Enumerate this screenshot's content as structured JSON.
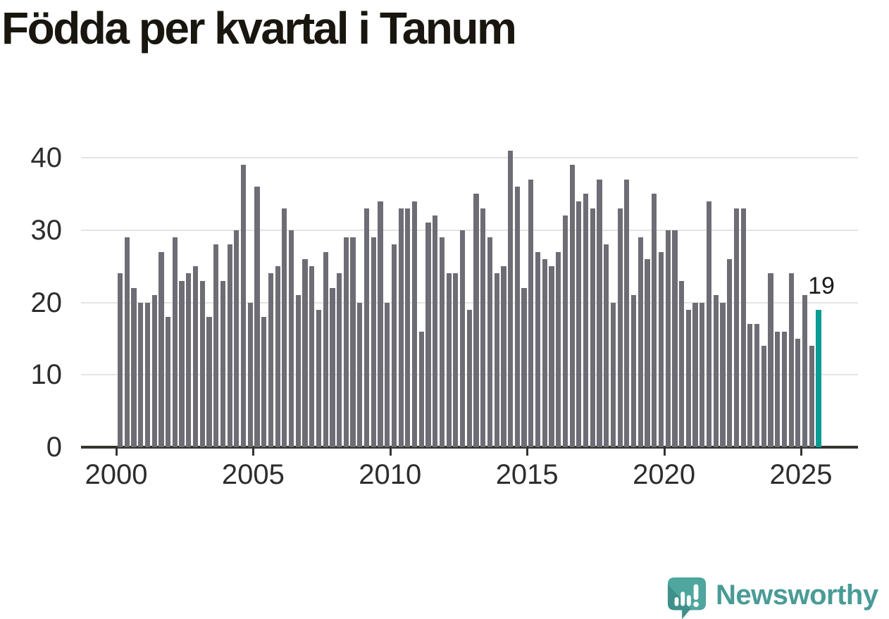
{
  "title": "Födda per kvartal i Tanum",
  "chart_data": {
    "type": "bar",
    "title": "Födda per kvartal i Tanum",
    "quarters": [
      "2000 Q1",
      "2000 Q2",
      "2000 Q3",
      "2000 Q4",
      "2001 Q1",
      "2001 Q2",
      "2001 Q3",
      "2001 Q4",
      "2002 Q1",
      "2002 Q2",
      "2002 Q3",
      "2002 Q4",
      "2003 Q1",
      "2003 Q2",
      "2003 Q3",
      "2003 Q4",
      "2004 Q1",
      "2004 Q2",
      "2004 Q3",
      "2004 Q4",
      "2005 Q1",
      "2005 Q2",
      "2005 Q3",
      "2005 Q4",
      "2006 Q1",
      "2006 Q2",
      "2006 Q3",
      "2006 Q4",
      "2007 Q1",
      "2007 Q2",
      "2007 Q3",
      "2007 Q4",
      "2008 Q1",
      "2008 Q2",
      "2008 Q3",
      "2008 Q4",
      "2009 Q1",
      "2009 Q2",
      "2009 Q3",
      "2009 Q4",
      "2010 Q1",
      "2010 Q2",
      "2010 Q3",
      "2010 Q4",
      "2011 Q1",
      "2011 Q2",
      "2011 Q3",
      "2011 Q4",
      "2012 Q1",
      "2012 Q2",
      "2012 Q3",
      "2012 Q4",
      "2013 Q1",
      "2013 Q2",
      "2013 Q3",
      "2013 Q4",
      "2014 Q1",
      "2014 Q2",
      "2014 Q3",
      "2014 Q4",
      "2015 Q1",
      "2015 Q2",
      "2015 Q3",
      "2015 Q4",
      "2016 Q1",
      "2016 Q2",
      "2016 Q3",
      "2016 Q4",
      "2017 Q1",
      "2017 Q2",
      "2017 Q3",
      "2017 Q4",
      "2018 Q1",
      "2018 Q2",
      "2018 Q3",
      "2018 Q4",
      "2019 Q1",
      "2019 Q2",
      "2019 Q3",
      "2019 Q4",
      "2020 Q1",
      "2020 Q2",
      "2020 Q3",
      "2020 Q4",
      "2021 Q1",
      "2021 Q2",
      "2021 Q3",
      "2021 Q4",
      "2022 Q1",
      "2022 Q2",
      "2022 Q3",
      "2022 Q4",
      "2023 Q1",
      "2023 Q2",
      "2023 Q3",
      "2023 Q4",
      "2024 Q1",
      "2024 Q2",
      "2024 Q3",
      "2024 Q4",
      "2025 Q1",
      "2025 Q2",
      "2025 Q3"
    ],
    "values": [
      24,
      29,
      22,
      20,
      20,
      21,
      27,
      18,
      29,
      23,
      24,
      25,
      23,
      18,
      28,
      23,
      28,
      30,
      39,
      20,
      36,
      18,
      24,
      25,
      33,
      30,
      21,
      26,
      25,
      19,
      27,
      22,
      24,
      29,
      29,
      20,
      33,
      29,
      34,
      20,
      28,
      33,
      33,
      34,
      16,
      31,
      32,
      29,
      24,
      24,
      30,
      19,
      35,
      33,
      29,
      24,
      25,
      41,
      36,
      22,
      37,
      27,
      26,
      25,
      27,
      32,
      39,
      34,
      35,
      33,
      37,
      28,
      20,
      33,
      37,
      21,
      29,
      26,
      35,
      27,
      30,
      30,
      23,
      19,
      20,
      20,
      34,
      21,
      20,
      26,
      33,
      33,
      17,
      17,
      14,
      24,
      16,
      16,
      24,
      15,
      21,
      14,
      19
    ],
    "highlight_index": 102,
    "highlight_value": 19,
    "annotation": "19",
    "yticks": [
      0,
      10,
      20,
      30,
      40
    ],
    "ylim": [
      0,
      40
    ],
    "xticks": [
      "2000",
      "2005",
      "2010",
      "2015",
      "2020",
      "2025"
    ],
    "grid": "horizontal",
    "colors": {
      "bar": "#6e6c74",
      "highlight": "#0a9d93",
      "gridline": "#e4e4e4",
      "axis": "#36342f",
      "tick_text": "#2d2d2d",
      "annotation_text": "#191919",
      "title_text": "#18160f"
    }
  },
  "branding": {
    "name": "Newsworthy",
    "icon": "newsworthy-logo-icon",
    "color": "#4a9b96",
    "icon_color_light": "#4ea69e",
    "icon_color_dark": "#3f908a"
  }
}
